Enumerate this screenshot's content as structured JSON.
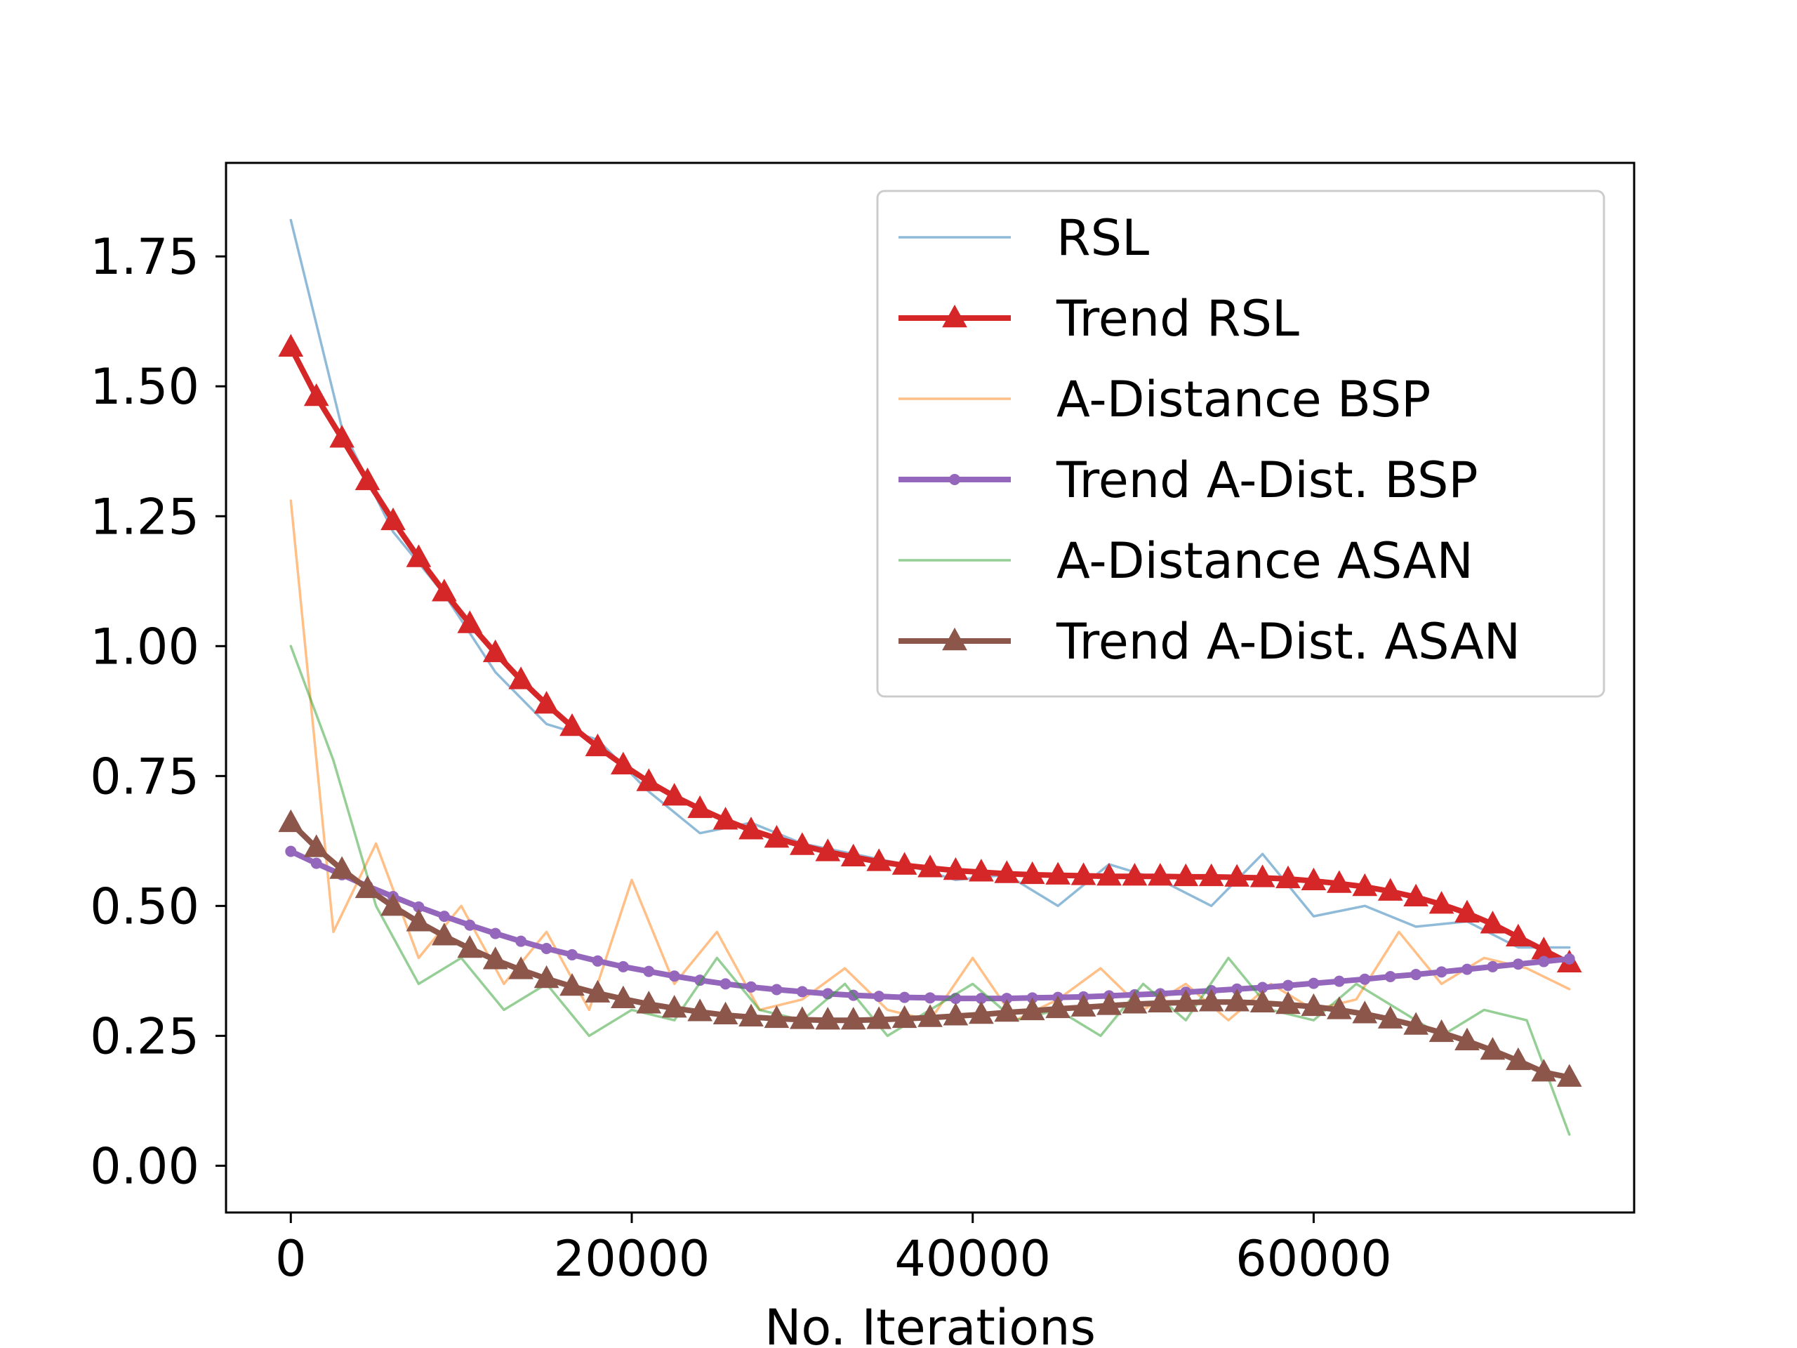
{
  "chart_data": {
    "type": "line",
    "title": "",
    "xlabel": "No. Iterations",
    "ylabel": "",
    "xlim": [
      -3800,
      78800
    ],
    "ylim": [
      -0.09,
      1.93
    ],
    "xticks": [
      0,
      20000,
      40000,
      60000
    ],
    "xtick_labels": [
      "0",
      "20000",
      "40000",
      "60000"
    ],
    "yticks": [
      0.0,
      0.25,
      0.5,
      0.75,
      1.0,
      1.25,
      1.5,
      1.75
    ],
    "ytick_labels": [
      "0.00",
      "0.25",
      "0.50",
      "0.75",
      "1.00",
      "1.25",
      "1.50",
      "1.75"
    ],
    "grid": false,
    "legend_position": "top-right",
    "series": [
      {
        "name": "RSL",
        "color": "#1f77b4",
        "alpha": 0.5,
        "marker": "none",
        "x": [
          0,
          3000,
          6000,
          9000,
          12000,
          15000,
          18000,
          21000,
          24000,
          27000,
          30000,
          33000,
          36000,
          39000,
          42000,
          45000,
          48000,
          51000,
          54000,
          57000,
          60000,
          63000,
          66000,
          69000,
          72000,
          75000
        ],
        "y": [
          1.82,
          1.42,
          1.22,
          1.1,
          0.95,
          0.85,
          0.82,
          0.72,
          0.64,
          0.66,
          0.62,
          0.6,
          0.58,
          0.55,
          0.56,
          0.5,
          0.58,
          0.55,
          0.5,
          0.6,
          0.48,
          0.5,
          0.46,
          0.47,
          0.42,
          0.42
        ]
      },
      {
        "name": "Trend RSL",
        "color": "#d62728",
        "alpha": 1.0,
        "marker": "triangle",
        "x": [
          0,
          1500,
          3000,
          4500,
          6000,
          7500,
          9000,
          10500,
          12000,
          13500,
          15000,
          16500,
          18000,
          19500,
          21000,
          22500,
          24000,
          25500,
          27000,
          28500,
          30000,
          31500,
          33000,
          34500,
          36000,
          37500,
          39000,
          40500,
          42000,
          43500,
          45000,
          46500,
          48000,
          49500,
          51000,
          52500,
          54000,
          55500,
          57000,
          58500,
          60000,
          61500,
          63000,
          64500,
          66000,
          67500,
          69000,
          70500,
          72000,
          73500,
          75000
        ],
        "y": [
          1.575,
          1.48,
          1.4,
          1.318,
          1.241,
          1.17,
          1.104,
          1.043,
          0.987,
          0.935,
          0.888,
          0.845,
          0.806,
          0.771,
          0.739,
          0.711,
          0.687,
          0.665,
          0.646,
          0.63,
          0.616,
          0.604,
          0.594,
          0.585,
          0.578,
          0.573,
          0.568,
          0.565,
          0.562,
          0.56,
          0.559,
          0.558,
          0.557,
          0.557,
          0.557,
          0.556,
          0.556,
          0.555,
          0.554,
          0.552,
          0.548,
          0.543,
          0.537,
          0.528,
          0.517,
          0.503,
          0.486,
          0.465,
          0.44,
          0.415,
          0.39
        ]
      },
      {
        "name": "A-Distance BSP",
        "color": "#ff7f0e",
        "alpha": 0.5,
        "marker": "none",
        "x": [
          0,
          2500,
          5000,
          7500,
          10000,
          12500,
          15000,
          17500,
          20000,
          22500,
          25000,
          27500,
          30000,
          32500,
          35000,
          37500,
          40000,
          42500,
          45000,
          47500,
          50000,
          52500,
          55000,
          57500,
          60000,
          62500,
          65000,
          67500,
          70000,
          72500,
          75000
        ],
        "y": [
          1.28,
          0.45,
          0.62,
          0.4,
          0.5,
          0.35,
          0.45,
          0.3,
          0.55,
          0.35,
          0.45,
          0.3,
          0.32,
          0.38,
          0.3,
          0.28,
          0.4,
          0.28,
          0.32,
          0.38,
          0.3,
          0.35,
          0.28,
          0.35,
          0.3,
          0.32,
          0.45,
          0.35,
          0.4,
          0.38,
          0.34
        ]
      },
      {
        "name": "Trend A-Dist. BSP",
        "color": "#9467bd",
        "alpha": 1.0,
        "marker": "dot",
        "x": [
          0,
          1500,
          3000,
          4500,
          6000,
          7500,
          9000,
          10500,
          12000,
          13500,
          15000,
          16500,
          18000,
          19500,
          21000,
          22500,
          24000,
          25500,
          27000,
          28500,
          30000,
          31500,
          33000,
          34500,
          36000,
          37500,
          39000,
          40500,
          42000,
          43500,
          45000,
          46500,
          48000,
          49500,
          51000,
          52500,
          54000,
          55500,
          57000,
          58500,
          60000,
          61500,
          63000,
          64500,
          66000,
          67500,
          69000,
          70500,
          72000,
          73500,
          75000
        ],
        "y": [
          0.605,
          0.582,
          0.56,
          0.538,
          0.518,
          0.498,
          0.48,
          0.463,
          0.447,
          0.432,
          0.418,
          0.406,
          0.394,
          0.383,
          0.374,
          0.365,
          0.357,
          0.35,
          0.344,
          0.339,
          0.335,
          0.331,
          0.328,
          0.326,
          0.324,
          0.323,
          0.322,
          0.322,
          0.322,
          0.323,
          0.324,
          0.325,
          0.327,
          0.329,
          0.331,
          0.334,
          0.337,
          0.34,
          0.343,
          0.347,
          0.351,
          0.355,
          0.359,
          0.364,
          0.368,
          0.373,
          0.378,
          0.383,
          0.388,
          0.393,
          0.398
        ]
      },
      {
        "name": "A-Distance ASAN",
        "color": "#2ca02c",
        "alpha": 0.5,
        "marker": "none",
        "x": [
          0,
          2500,
          5000,
          7500,
          10000,
          12500,
          15000,
          17500,
          20000,
          22500,
          25000,
          27500,
          30000,
          32500,
          35000,
          37500,
          40000,
          42500,
          45000,
          47500,
          50000,
          52500,
          55000,
          57500,
          60000,
          62500,
          65000,
          67500,
          70000,
          72500,
          75000
        ],
        "y": [
          1.0,
          0.78,
          0.5,
          0.35,
          0.4,
          0.3,
          0.35,
          0.25,
          0.3,
          0.28,
          0.4,
          0.3,
          0.28,
          0.35,
          0.25,
          0.3,
          0.35,
          0.28,
          0.3,
          0.25,
          0.35,
          0.28,
          0.4,
          0.3,
          0.28,
          0.35,
          0.3,
          0.25,
          0.3,
          0.28,
          0.06
        ]
      },
      {
        "name": "Trend A-Dist. ASAN",
        "color": "#8c564b",
        "alpha": 1.0,
        "marker": "triangle",
        "x": [
          0,
          1500,
          3000,
          4500,
          6000,
          7500,
          9000,
          10500,
          12000,
          13500,
          15000,
          16500,
          18000,
          19500,
          21000,
          22500,
          24000,
          25500,
          27000,
          28500,
          30000,
          31500,
          33000,
          34500,
          36000,
          37500,
          39000,
          40500,
          42000,
          43500,
          45000,
          46500,
          48000,
          49500,
          51000,
          52500,
          54000,
          55500,
          57000,
          58500,
          60000,
          61500,
          63000,
          64500,
          66000,
          67500,
          69000,
          70500,
          72000,
          73500,
          75000
        ],
        "y": [
          0.66,
          0.612,
          0.57,
          0.533,
          0.499,
          0.469,
          0.442,
          0.418,
          0.396,
          0.377,
          0.36,
          0.345,
          0.332,
          0.321,
          0.311,
          0.303,
          0.296,
          0.29,
          0.286,
          0.283,
          0.281,
          0.28,
          0.28,
          0.281,
          0.283,
          0.285,
          0.288,
          0.291,
          0.295,
          0.298,
          0.302,
          0.305,
          0.308,
          0.311,
          0.313,
          0.314,
          0.315,
          0.315,
          0.313,
          0.31,
          0.306,
          0.3,
          0.292,
          0.282,
          0.27,
          0.256,
          0.24,
          0.222,
          0.202,
          0.18,
          0.17
        ]
      }
    ]
  }
}
